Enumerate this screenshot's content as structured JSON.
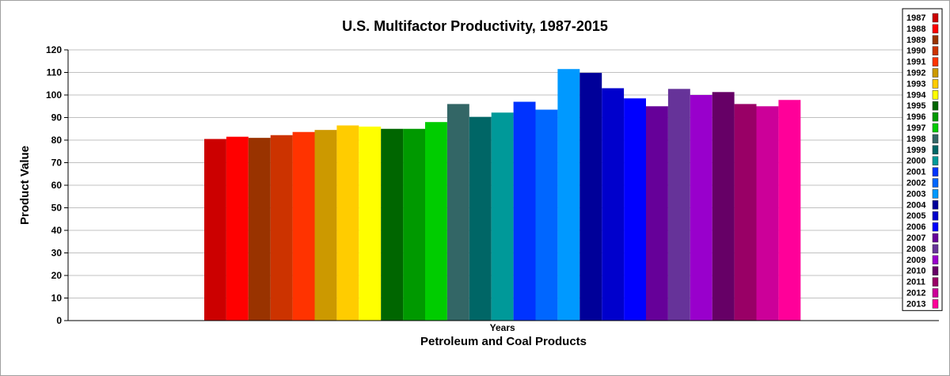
{
  "chart_data": {
    "type": "bar",
    "title": "U.S. Multifactor Productivity, 1987-2015",
    "xlabel": "Petroleum and Coal Products",
    "ylabel": "Product Value",
    "categories": [
      "Years"
    ],
    "ylim": [
      0,
      120
    ],
    "yticks": [
      0,
      10,
      20,
      30,
      40,
      50,
      60,
      70,
      80,
      90,
      100,
      110,
      120
    ],
    "grid": true,
    "legend_position": "right",
    "series": [
      {
        "name": "1987",
        "values": [
          80.5
        ],
        "color": "#cc0000"
      },
      {
        "name": "1988",
        "values": [
          81.5
        ],
        "color": "#ff0000"
      },
      {
        "name": "1989",
        "values": [
          81.0
        ],
        "color": "#993300"
      },
      {
        "name": "1990",
        "values": [
          82.2
        ],
        "color": "#cc3300"
      },
      {
        "name": "1991",
        "values": [
          83.6
        ],
        "color": "#ff3300"
      },
      {
        "name": "1992",
        "values": [
          84.5
        ],
        "color": "#cc9900"
      },
      {
        "name": "1993",
        "values": [
          86.5
        ],
        "color": "#ffcc00"
      },
      {
        "name": "1994",
        "values": [
          86.0
        ],
        "color": "#ffff00"
      },
      {
        "name": "1995",
        "values": [
          85.0
        ],
        "color": "#006600"
      },
      {
        "name": "1996",
        "values": [
          85.0
        ],
        "color": "#009900"
      },
      {
        "name": "1997",
        "values": [
          88.0
        ],
        "color": "#00cc00"
      },
      {
        "name": "1998",
        "values": [
          96.0
        ],
        "color": "#336666"
      },
      {
        "name": "1999",
        "values": [
          90.3
        ],
        "color": "#006666"
      },
      {
        "name": "2000",
        "values": [
          92.2
        ],
        "color": "#009999"
      },
      {
        "name": "2001",
        "values": [
          97.0
        ],
        "color": "#0033ff"
      },
      {
        "name": "2002",
        "values": [
          93.5
        ],
        "color": "#0066ff"
      },
      {
        "name": "2003",
        "values": [
          111.5
        ],
        "color": "#0099ff"
      },
      {
        "name": "2004",
        "values": [
          109.8
        ],
        "color": "#000099"
      },
      {
        "name": "2005",
        "values": [
          103.0
        ],
        "color": "#0000cc"
      },
      {
        "name": "2006",
        "values": [
          98.5
        ],
        "color": "#0000ff"
      },
      {
        "name": "2007",
        "values": [
          95.0
        ],
        "color": "#660099"
      },
      {
        "name": "2008",
        "values": [
          102.7
        ],
        "color": "#663399"
      },
      {
        "name": "2009",
        "values": [
          100.0
        ],
        "color": "#9900cc"
      },
      {
        "name": "2010",
        "values": [
          101.3
        ],
        "color": "#660066"
      },
      {
        "name": "2011",
        "values": [
          96.0
        ],
        "color": "#990066"
      },
      {
        "name": "2012",
        "values": [
          95.0
        ],
        "color": "#cc0099"
      },
      {
        "name": "2013",
        "values": [
          97.8
        ],
        "color": "#ff0099"
      }
    ]
  }
}
